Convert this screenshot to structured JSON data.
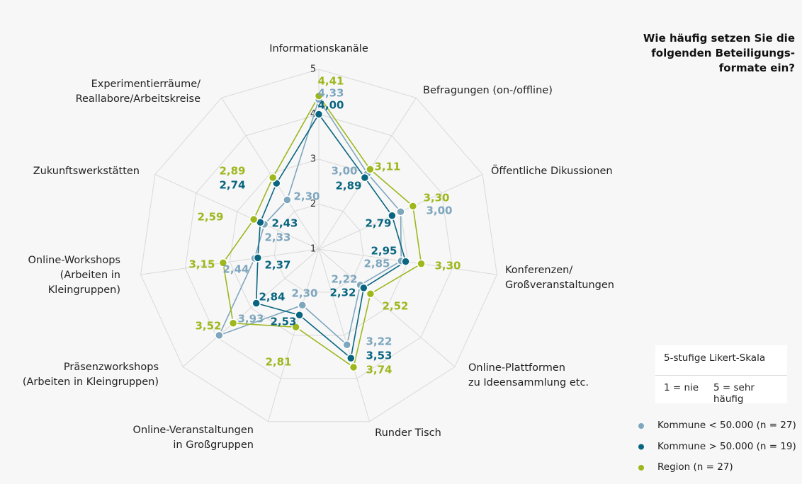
{
  "chart_data": {
    "type": "radar",
    "title": "Wie häufig setzen Sie die\nfolgenden Beteiligungs-\nformate ein?",
    "scale_note": "5-stufige Likert-Skala",
    "scale_low": "1 = nie",
    "scale_high": "5 = sehr häufig",
    "categories": [
      "Informationskanäle",
      "Befragungen (on-/offline)",
      "Öffentliche Dikussionen",
      "Konferenzen/\nGroßveranstaltungen",
      "Online-Plattformen\nzu Ideensammlung etc.",
      "Runder Tisch",
      "Online-Veranstaltungen\nin Großgruppen",
      "Präsenzworkshops\n(Arbeiten in Kleingruppen)",
      "Online-Workshops\n(Arbeiten in\nKleingruppen)",
      "Zukunftswerkstätten",
      "Experimentierräume/\nReallabore/Arbeitskreise"
    ],
    "ylim": [
      1,
      5
    ],
    "yticks": [
      1,
      2,
      3,
      4,
      5
    ],
    "grid": true,
    "series": [
      {
        "name": "Kommune < 50.000 (n = 27)",
        "color": "#7ea6bd",
        "values": [
          4.33,
          3.0,
          3.0,
          2.85,
          2.22,
          3.22,
          2.3,
          3.93,
          2.44,
          2.33,
          2.3
        ],
        "value_labels": [
          "4,33",
          "3,00",
          "3,00",
          "2,85",
          "2,22",
          "3,22",
          "2,30",
          "3,93",
          "2,44",
          "2,33",
          "2,30"
        ]
      },
      {
        "name": "Kommune > 50.000 (n = 19)",
        "color": "#0a6680",
        "values": [
          4.0,
          2.89,
          2.79,
          2.95,
          2.32,
          3.53,
          2.53,
          2.84,
          2.37,
          2.43,
          2.74
        ],
        "value_labels": [
          "4,00",
          "2,89",
          "2,79",
          "2,95",
          "2,32",
          "3,53",
          "2,53",
          "2,84",
          "2,37",
          "2,43",
          "2,74"
        ]
      },
      {
        "name": "Region (n = 27)",
        "color": "#9db71c",
        "values": [
          4.41,
          3.11,
          3.3,
          3.3,
          2.52,
          3.74,
          2.81,
          3.52,
          3.15,
          2.59,
          2.89
        ],
        "value_labels": [
          "4,41",
          "3,11",
          "3,30",
          "3,30",
          "2,52",
          "3,74",
          "2,81",
          "3,52",
          "3,15",
          "2,59",
          "2,89"
        ]
      }
    ]
  }
}
